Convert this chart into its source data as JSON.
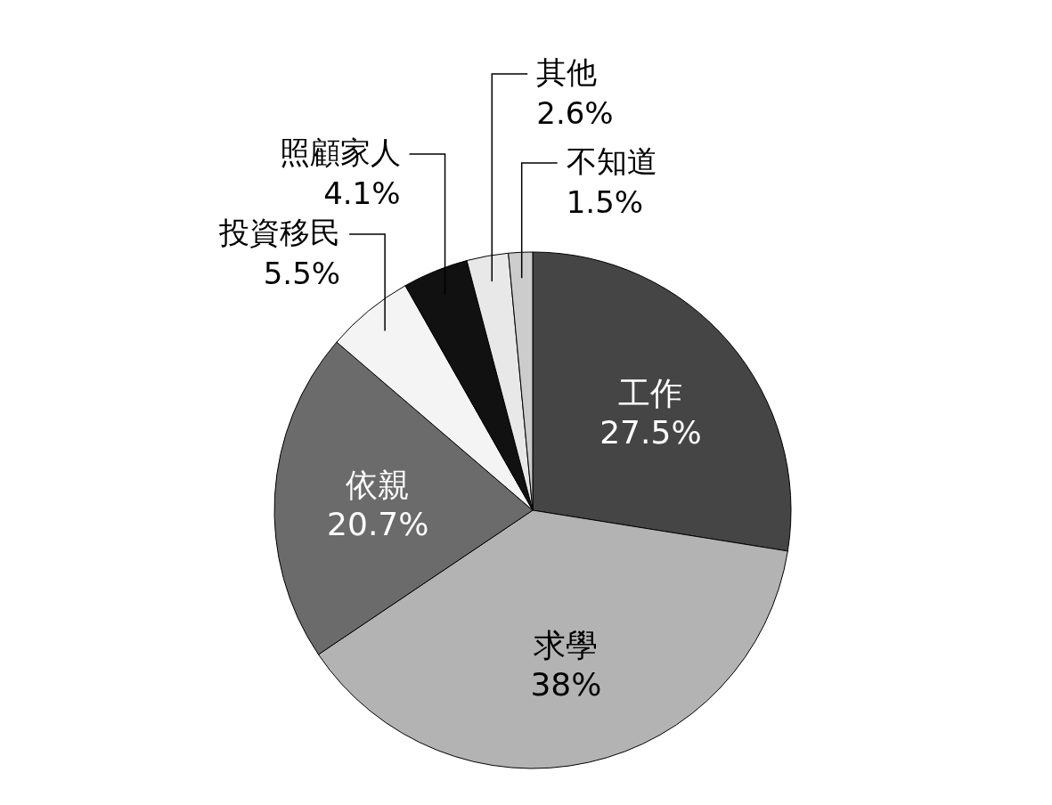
{
  "chart_data": {
    "type": "pie",
    "categories": [
      "工作",
      "求學",
      "依親",
      "投資移民",
      "照顧家人",
      "其他",
      "不知道"
    ],
    "values": [
      27.5,
      38,
      20.7,
      5.5,
      4.1,
      2.6,
      1.5
    ],
    "colors": [
      "#454545",
      "#b3b3b3",
      "#6b6b6b",
      "#f4f4f4",
      "#111111",
      "#e8e8e8",
      "#cccccc"
    ],
    "value_labels": [
      "27.5%",
      "38%",
      "20.7%",
      "5.5%",
      "4.1%",
      "2.6%",
      "1.5%"
    ]
  }
}
